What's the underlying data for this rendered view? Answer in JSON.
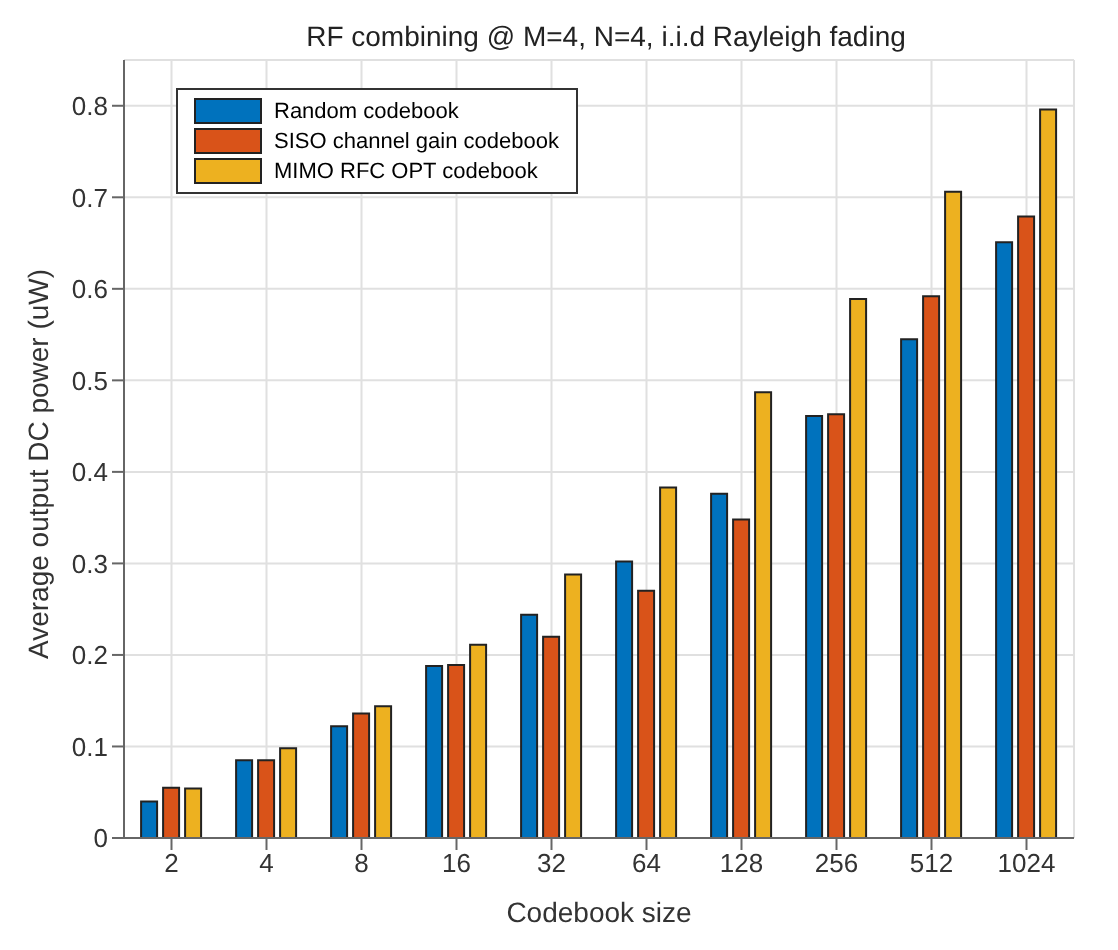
{
  "chart_data": {
    "type": "bar",
    "title": "RF combining @ M=4, N=4, i.i.d Rayleigh fading",
    "xlabel": "Codebook size",
    "ylabel": "Average output DC power (uW)",
    "categories": [
      "2",
      "4",
      "8",
      "16",
      "32",
      "64",
      "128",
      "256",
      "512",
      "1024"
    ],
    "series": [
      {
        "name": "Random codebook",
        "color": "#0072bd",
        "values": [
          0.04,
          0.085,
          0.122,
          0.188,
          0.244,
          0.302,
          0.376,
          0.461,
          0.545,
          0.651
        ]
      },
      {
        "name": "SISO channel gain codebook",
        "color": "#d95319",
        "values": [
          0.055,
          0.085,
          0.136,
          0.189,
          0.22,
          0.27,
          0.348,
          0.463,
          0.592,
          0.679
        ]
      },
      {
        "name": "MIMO RFC OPT codebook",
        "color": "#edb120",
        "values": [
          0.054,
          0.098,
          0.144,
          0.211,
          0.288,
          0.383,
          0.487,
          0.589,
          0.706,
          0.796
        ]
      }
    ],
    "ylim": [
      0,
      0.85
    ],
    "yticks": [
      0,
      0.1,
      0.2,
      0.3,
      0.4,
      0.5,
      0.6,
      0.7,
      0.8
    ],
    "grid": true,
    "legend": "top left"
  }
}
